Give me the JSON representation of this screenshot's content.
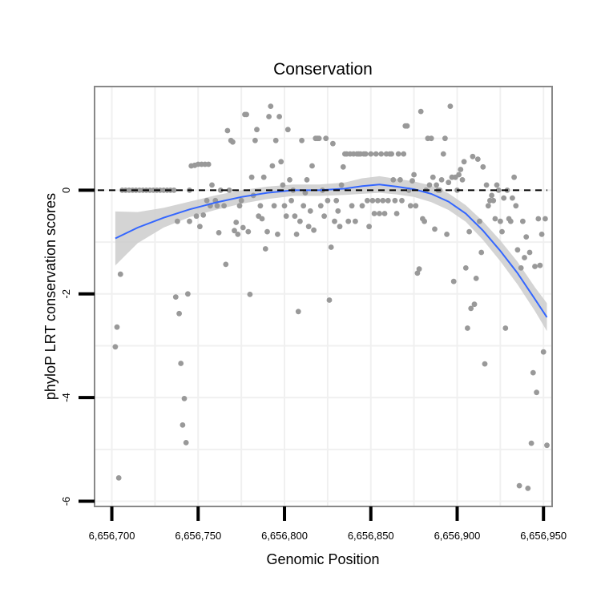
{
  "chart_data": {
    "type": "scatter",
    "title": "Conservation",
    "xlabel": "Genomic Position",
    "ylabel": "phyloP LRT conservation scores",
    "xlim": [
      6656690,
      6656955
    ],
    "ylim": [
      -6.1,
      2.0
    ],
    "x_ticks": [
      {
        "value": 6656700,
        "label": "6,656,700"
      },
      {
        "value": 6656750,
        "label": "6,656,750"
      },
      {
        "value": 6656800,
        "label": "6,656,800"
      },
      {
        "value": 6656850,
        "label": "6,656,850"
      },
      {
        "value": 6656900,
        "label": "6,656,900"
      },
      {
        "value": 6656950,
        "label": "6,656,950"
      }
    ],
    "y_ticks": [
      {
        "value": 0,
        "label": "0"
      },
      {
        "value": -2,
        "label": "-2"
      },
      {
        "value": -4,
        "label": "-4"
      },
      {
        "value": -6,
        "label": "-6"
      }
    ],
    "reference_line": {
      "y": 0,
      "style": "dashed"
    },
    "grid": true,
    "colors": {
      "points": "#999999",
      "smooth": "#3366ff",
      "ribbon": "#cccccc",
      "grid": "#f0f0f0",
      "border": "#888888"
    },
    "points": [
      [
        6656702,
        -3.02
      ],
      [
        6656703,
        -2.64
      ],
      [
        6656704,
        -5.55
      ],
      [
        6656705,
        -1.62
      ],
      [
        6656706,
        0.0
      ],
      [
        6656708,
        0.0
      ],
      [
        6656710,
        0.0
      ],
      [
        6656712,
        0.0
      ],
      [
        6656714,
        0.0
      ],
      [
        6656716,
        0.0
      ],
      [
        6656718,
        0.0
      ],
      [
        6656720,
        0.0
      ],
      [
        6656722,
        0.0
      ],
      [
        6656724,
        0.0
      ],
      [
        6656726,
        0.0
      ],
      [
        6656728,
        0.0
      ],
      [
        6656730,
        0.0
      ],
      [
        6656732,
        0.0
      ],
      [
        6656734,
        0.0
      ],
      [
        6656736,
        0.0
      ],
      [
        6656737,
        -2.06
      ],
      [
        6656738,
        -0.6
      ],
      [
        6656739,
        -2.38
      ],
      [
        6656740,
        -3.34
      ],
      [
        6656741,
        -4.53
      ],
      [
        6656742,
        -4.02
      ],
      [
        6656743,
        -4.87
      ],
      [
        6656744,
        -2.0
      ],
      [
        6656745,
        0.0
      ],
      [
        6656745,
        -0.6
      ],
      [
        6656746,
        0.47
      ],
      [
        6656748,
        0.48
      ],
      [
        6656750,
        0.5
      ],
      [
        6656752,
        0.5
      ],
      [
        6656754,
        0.5
      ],
      [
        6656756,
        0.5
      ],
      [
        6656749,
        -0.5
      ],
      [
        6656751,
        -0.7
      ],
      [
        6656753,
        -0.48
      ],
      [
        6656755,
        -0.2
      ],
      [
        6656757,
        -0.3
      ],
      [
        6656758,
        0.1
      ],
      [
        6656760,
        -0.2
      ],
      [
        6656761,
        -0.3
      ],
      [
        6656762,
        -0.82
      ],
      [
        6656763,
        0.0
      ],
      [
        6656765,
        -0.3
      ],
      [
        6656766,
        -1.43
      ],
      [
        6656767,
        1.15
      ],
      [
        6656768,
        0.0
      ],
      [
        6656769,
        0.96
      ],
      [
        6656770,
        0.93
      ],
      [
        6656771,
        -0.78
      ],
      [
        6656772,
        -0.62
      ],
      [
        6656773,
        -0.85
      ],
      [
        6656774,
        -0.3
      ],
      [
        6656775,
        -0.2
      ],
      [
        6656776,
        -0.72
      ],
      [
        6656777,
        1.46
      ],
      [
        6656778,
        1.46
      ],
      [
        6656779,
        -0.8
      ],
      [
        6656780,
        -2.01
      ],
      [
        6656781,
        0.25
      ],
      [
        6656782,
        -0.1
      ],
      [
        6656783,
        0.96
      ],
      [
        6656784,
        1.17
      ],
      [
        6656785,
        -0.5
      ],
      [
        6656786,
        -0.3
      ],
      [
        6656787,
        -0.55
      ],
      [
        6656788,
        0.25
      ],
      [
        6656789,
        -1.13
      ],
      [
        6656790,
        -0.8
      ],
      [
        6656791,
        1.42
      ],
      [
        6656792,
        1.62
      ],
      [
        6656793,
        0.47
      ],
      [
        6656794,
        -0.3
      ],
      [
        6656795,
        0.96
      ],
      [
        6656796,
        -0.85
      ],
      [
        6656797,
        1.42
      ],
      [
        6656798,
        0.55
      ],
      [
        6656799,
        0.1
      ],
      [
        6656800,
        -0.3
      ],
      [
        6656801,
        -0.5
      ],
      [
        6656802,
        1.17
      ],
      [
        6656803,
        0.2
      ],
      [
        6656804,
        -0.2
      ],
      [
        6656805,
        0.0
      ],
      [
        6656806,
        -0.5
      ],
      [
        6656807,
        -0.85
      ],
      [
        6656808,
        -2.34
      ],
      [
        6656809,
        -0.6
      ],
      [
        6656810,
        0.96
      ],
      [
        6656811,
        -0.3
      ],
      [
        6656812,
        -0.05
      ],
      [
        6656813,
        0.2
      ],
      [
        6656814,
        -0.7
      ],
      [
        6656815,
        -0.4
      ],
      [
        6656816,
        0.47
      ],
      [
        6656817,
        -0.77
      ],
      [
        6656818,
        1.0
      ],
      [
        6656819,
        1.0
      ],
      [
        6656820,
        1.0
      ],
      [
        6656821,
        -0.3
      ],
      [
        6656822,
        0.0
      ],
      [
        6656823,
        -0.5
      ],
      [
        6656824,
        1.0
      ],
      [
        6656825,
        -0.2
      ],
      [
        6656826,
        -2.12
      ],
      [
        6656827,
        -1.1
      ],
      [
        6656828,
        0.9
      ],
      [
        6656829,
        -0.6
      ],
      [
        6656830,
        -0.2
      ],
      [
        6656831,
        -0.4
      ],
      [
        6656832,
        -0.7
      ],
      [
        6656833,
        0.1
      ],
      [
        6656834,
        0.45
      ],
      [
        6656835,
        0.7
      ],
      [
        6656836,
        0.7
      ],
      [
        6656837,
        -0.6
      ],
      [
        6656838,
        0.7
      ],
      [
        6656839,
        -0.3
      ],
      [
        6656840,
        0.7
      ],
      [
        6656841,
        -0.6
      ],
      [
        6656842,
        0.7
      ],
      [
        6656843,
        0.7
      ],
      [
        6656844,
        0.7
      ],
      [
        6656845,
        -0.3
      ],
      [
        6656846,
        0.7
      ],
      [
        6656847,
        0.7
      ],
      [
        6656848,
        -0.2
      ],
      [
        6656849,
        -0.7
      ],
      [
        6656850,
        0.7
      ],
      [
        6656851,
        -0.2
      ],
      [
        6656852,
        -0.45
      ],
      [
        6656853,
        0.7
      ],
      [
        6656854,
        -0.2
      ],
      [
        6656855,
        -0.45
      ],
      [
        6656856,
        0.7
      ],
      [
        6656857,
        -0.2
      ],
      [
        6656858,
        -0.45
      ],
      [
        6656859,
        0.7
      ],
      [
        6656860,
        -0.2
      ],
      [
        6656861,
        0.7
      ],
      [
        6656862,
        0.7
      ],
      [
        6656863,
        0.2
      ],
      [
        6656864,
        -0.2
      ],
      [
        6656865,
        -0.45
      ],
      [
        6656866,
        0.7
      ],
      [
        6656867,
        0.2
      ],
      [
        6656868,
        -0.2
      ],
      [
        6656869,
        0.7
      ],
      [
        6656870,
        1.24
      ],
      [
        6656871,
        1.24
      ],
      [
        6656872,
        0.0
      ],
      [
        6656873,
        -0.3
      ],
      [
        6656874,
        0.18
      ],
      [
        6656875,
        0.3
      ],
      [
        6656876,
        -0.3
      ],
      [
        6656877,
        -1.6
      ],
      [
        6656878,
        -1.52
      ],
      [
        6656879,
        1.52
      ],
      [
        6656880,
        -0.55
      ],
      [
        6656881,
        -0.6
      ],
      [
        6656882,
        0.0
      ],
      [
        6656883,
        1.0
      ],
      [
        6656884,
        0.1
      ],
      [
        6656885,
        1.0
      ],
      [
        6656886,
        0.25
      ],
      [
        6656887,
        -0.75
      ],
      [
        6656888,
        0.1
      ],
      [
        6656889,
        0.0
      ],
      [
        6656890,
        0.0
      ],
      [
        6656891,
        0.2
      ],
      [
        6656892,
        0.7
      ],
      [
        6656893,
        1.0
      ],
      [
        6656894,
        -0.85
      ],
      [
        6656895,
        0.15
      ],
      [
        6656896,
        1.62
      ],
      [
        6656897,
        0.25
      ],
      [
        6656898,
        -1.76
      ],
      [
        6656899,
        0.25
      ],
      [
        6656900,
        0.0
      ],
      [
        6656901,
        0.3
      ],
      [
        6656902,
        0.4
      ],
      [
        6656903,
        0.2
      ],
      [
        6656904,
        0.55
      ],
      [
        6656905,
        -1.5
      ],
      [
        6656906,
        -2.66
      ],
      [
        6656907,
        -0.8
      ],
      [
        6656908,
        -2.28
      ],
      [
        6656909,
        0.65
      ],
      [
        6656910,
        -2.2
      ],
      [
        6656911,
        -1.7
      ],
      [
        6656912,
        0.6
      ],
      [
        6656913,
        -0.6
      ],
      [
        6656914,
        -1.2
      ],
      [
        6656915,
        0.45
      ],
      [
        6656916,
        -3.35
      ],
      [
        6656917,
        0.1
      ],
      [
        6656918,
        -0.3
      ],
      [
        6656919,
        -0.2
      ],
      [
        6656920,
        -0.1
      ],
      [
        6656921,
        -0.2
      ],
      [
        6656922,
        -0.55
      ],
      [
        6656923,
        0.1
      ],
      [
        6656924,
        0.0
      ],
      [
        6656925,
        -0.6
      ],
      [
        6656926,
        -0.8
      ],
      [
        6656927,
        -0.15
      ],
      [
        6656928,
        -2.66
      ],
      [
        6656929,
        0.0
      ],
      [
        6656930,
        -0.55
      ],
      [
        6656931,
        -0.6
      ],
      [
        6656932,
        -0.15
      ],
      [
        6656933,
        0.25
      ],
      [
        6656934,
        -0.3
      ],
      [
        6656935,
        -1.15
      ],
      [
        6656936,
        -5.7
      ],
      [
        6656937,
        -1.5
      ],
      [
        6656938,
        -0.6
      ],
      [
        6656939,
        -1.3
      ],
      [
        6656940,
        -0.9
      ],
      [
        6656941,
        -5.75
      ],
      [
        6656942,
        -1.2
      ],
      [
        6656943,
        -4.88
      ],
      [
        6656944,
        -3.52
      ],
      [
        6656945,
        -1.47
      ],
      [
        6656946,
        -3.9
      ],
      [
        6656947,
        -0.55
      ],
      [
        6656948,
        -1.45
      ],
      [
        6656949,
        -0.85
      ],
      [
        6656950,
        -3.12
      ],
      [
        6656951,
        -0.55
      ],
      [
        6656952,
        -4.92
      ]
    ],
    "smooth": {
      "x": [
        6656702,
        6656715,
        6656730,
        6656745,
        6656760,
        6656775,
        6656790,
        6656805,
        6656820,
        6656835,
        6656845,
        6656855,
        6656865,
        6656875,
        6656885,
        6656895,
        6656905,
        6656915,
        6656925,
        6656935,
        6656945,
        6656952
      ],
      "y": [
        -0.93,
        -0.72,
        -0.53,
        -0.37,
        -0.24,
        -0.13,
        -0.05,
        0.0,
        0.0,
        0.03,
        0.08,
        0.11,
        0.07,
        0.02,
        -0.07,
        -0.22,
        -0.45,
        -0.78,
        -1.17,
        -1.6,
        -2.1,
        -2.45
      ],
      "lower": [
        -1.45,
        -1.02,
        -0.72,
        -0.52,
        -0.38,
        -0.26,
        -0.17,
        -0.11,
        -0.11,
        -0.09,
        -0.07,
        -0.05,
        -0.08,
        -0.13,
        -0.23,
        -0.38,
        -0.61,
        -0.96,
        -1.37,
        -1.82,
        -2.33,
        -2.72
      ],
      "upper": [
        -0.41,
        -0.42,
        -0.34,
        -0.22,
        -0.1,
        0.0,
        0.07,
        0.11,
        0.11,
        0.15,
        0.23,
        0.27,
        0.22,
        0.17,
        0.09,
        -0.06,
        -0.29,
        -0.6,
        -0.97,
        -1.38,
        -1.87,
        -2.18
      ]
    }
  }
}
